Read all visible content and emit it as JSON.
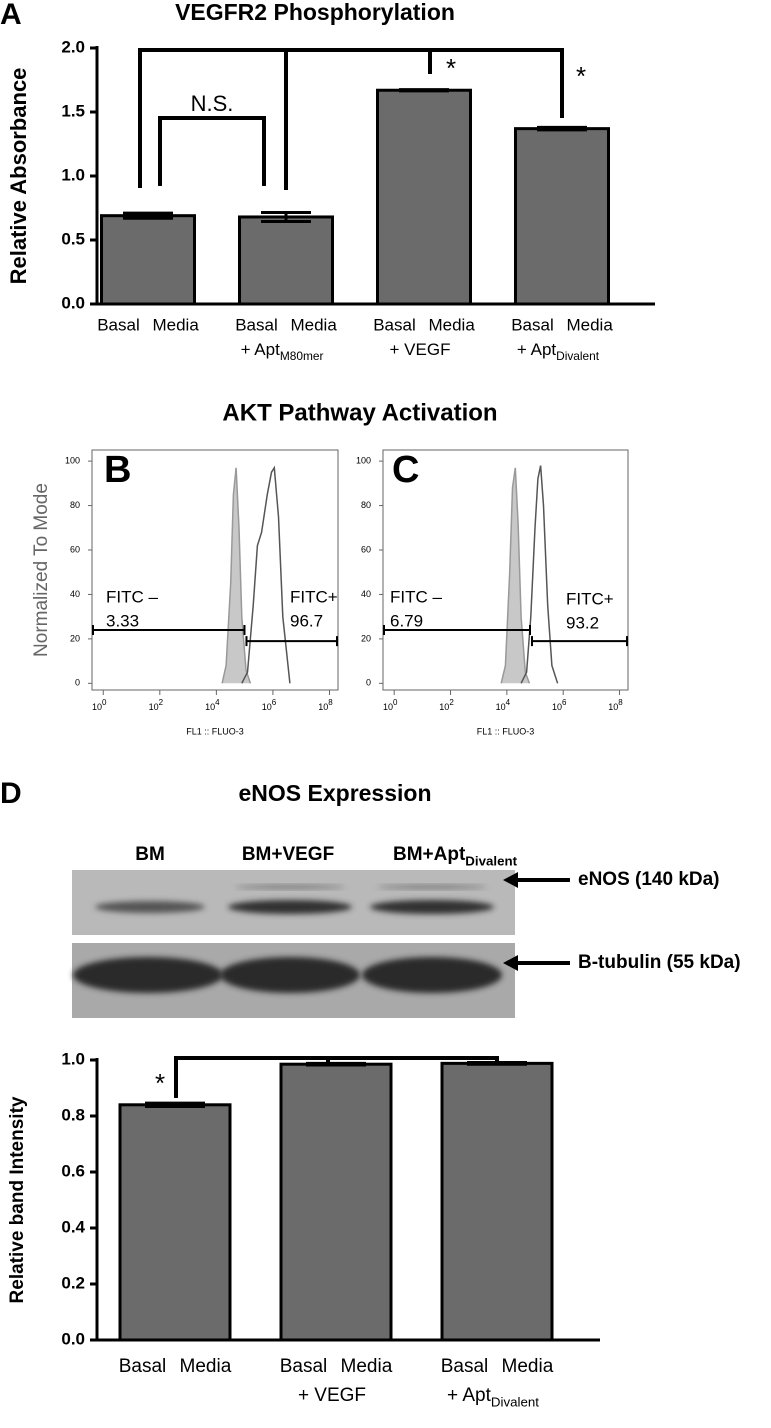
{
  "chart_data": [
    {
      "type": "bar",
      "panel": "A",
      "title": "VEGFR2 Phosphorylation",
      "y_label": "Relative Absorbance",
      "categories": [
        "Basal Media",
        "Basal Media",
        "Basal Media",
        "Basal Media"
      ],
      "category_second_lines": [
        null,
        "+ Apt",
        "+ VEGF",
        "+ Apt"
      ],
      "category_subscripts": [
        null,
        "M80mer",
        null,
        "Divalent"
      ],
      "values": [
        0.69,
        0.68,
        1.67,
        1.37
      ],
      "errors": [
        0.02,
        0.035,
        0.005,
        0.01
      ],
      "color": "#6b6b6b",
      "ylim": [
        0,
        2.0
      ],
      "yticks": [
        {
          "value": 0,
          "label": "0.0"
        },
        {
          "value": 0.5,
          "label": "0.5"
        },
        {
          "value": 1.0,
          "label": "1.0"
        },
        {
          "value": 1.5,
          "label": "1.5"
        },
        {
          "value": 2.0,
          "label": "2.0"
        }
      ],
      "annotations": [
        "N.S.",
        "*",
        "*"
      ]
    },
    {
      "type": "area",
      "panel": "B",
      "title": "AKT Pathway Activation",
      "y_label": "Normalized To Mode",
      "x_label": "FL1 :: FLUO-3",
      "xscale": "log",
      "xlim": [
        0.4,
        200000000
      ],
      "ylim": [
        -3,
        105
      ],
      "xticks": [
        {
          "value": 1,
          "label": "10",
          "exponent": "0"
        },
        {
          "value": 100,
          "label": "10",
          "exponent": "2"
        },
        {
          "value": 10000,
          "label": "10",
          "exponent": "4"
        },
        {
          "value": 1000000,
          "label": "10",
          "exponent": "6"
        },
        {
          "value": 100000000,
          "label": "10",
          "exponent": "8"
        }
      ],
      "yticks": [
        0,
        20,
        40,
        60,
        80,
        100
      ],
      "series": [
        {
          "color": "#999999",
          "fill": "#c8c8c8",
          "x": [
            16000,
            22000,
            32000,
            40000,
            50000,
            63000,
            79000,
            112000,
            160000
          ],
          "values": [
            0,
            8,
            45,
            85,
            97,
            70,
            30,
            6,
            0
          ]
        },
        {
          "color": "#555555",
          "x": [
            79000,
            126000,
            200000,
            282000,
            398000,
            631000,
            891000,
            1120000,
            1580000,
            2240000,
            3980000
          ],
          "values": [
            0,
            5,
            35,
            62,
            68,
            85,
            95,
            97,
            75,
            30,
            0
          ]
        }
      ],
      "gates": [
        {
          "name": "FITC –",
          "value": 3.33,
          "range": [
            0.4,
            107000
          ],
          "y": 24
        },
        {
          "name": "FITC+",
          "value": 96.7,
          "range": [
            107000,
            200000000
          ],
          "y": 19
        }
      ]
    },
    {
      "type": "area",
      "panel": "C",
      "x_label": "FL1 :: FLUO-3",
      "xscale": "log",
      "xlim": [
        0.4,
        200000000
      ],
      "ylim": [
        -3,
        105
      ],
      "xticks": [
        {
          "value": 1,
          "label": "10",
          "exponent": "0"
        },
        {
          "value": 100,
          "label": "10",
          "exponent": "2"
        },
        {
          "value": 10000,
          "label": "10",
          "exponent": "4"
        },
        {
          "value": 1000000,
          "label": "10",
          "exponent": "6"
        },
        {
          "value": 100000000,
          "label": "10",
          "exponent": "8"
        }
      ],
      "yticks": [
        0,
        20,
        40,
        60,
        80,
        100
      ],
      "series": [
        {
          "color": "#999999",
          "fill": "#c8c8c8",
          "x": [
            6300,
            8900,
            12600,
            15800,
            20000,
            25000,
            32000,
            45000,
            63000
          ],
          "values": [
            0,
            8,
            50,
            88,
            97,
            72,
            30,
            5,
            0
          ]
        },
        {
          "color": "#555555",
          "x": [
            32000,
            50000,
            71000,
            100000,
            126000,
            158000,
            200000,
            282000,
            398000,
            631000
          ],
          "values": [
            0,
            5,
            30,
            70,
            92,
            98,
            80,
            35,
            8,
            0
          ]
        }
      ],
      "gates": [
        {
          "name": "FITC –",
          "value": 6.79,
          "range": [
            0.4,
            72000
          ],
          "y": 24
        },
        {
          "name": "FITC+",
          "value": 93.2,
          "range": [
            72000,
            200000000
          ],
          "y": 19
        }
      ]
    },
    {
      "type": "bar",
      "panel": "D",
      "title": "eNOS Expression",
      "y_label": "Relative band Intensity",
      "blot": {
        "lanes": [
          "BM",
          "BM+VEGF",
          "BM+Apt"
        ],
        "lane_subscripts": [
          null,
          null,
          "Divalent"
        ],
        "bands": [
          "eNOS (140 kDa)",
          "B-tubulin (55 kDa)"
        ]
      },
      "categories": [
        "Basal Media",
        "Basal Media",
        "Basal Media"
      ],
      "category_second_lines": [
        null,
        "+ VEGF",
        "+ Apt"
      ],
      "category_subscripts": [
        null,
        null,
        "Divalent"
      ],
      "values": [
        0.84,
        0.985,
        0.988
      ],
      "errors": [
        0.006,
        0.003,
        0.003
      ],
      "color": "#6b6b6b",
      "ylim": [
        0,
        1.0
      ],
      "yticks": [
        {
          "value": 0,
          "label": "0.0"
        },
        {
          "value": 0.2,
          "label": "0.2"
        },
        {
          "value": 0.4,
          "label": "0.4"
        },
        {
          "value": 0.6,
          "label": "0.6"
        },
        {
          "value": 0.8,
          "label": "0.8"
        },
        {
          "value": 1.0,
          "label": "1.0"
        }
      ],
      "annotations": [
        "*"
      ]
    }
  ]
}
